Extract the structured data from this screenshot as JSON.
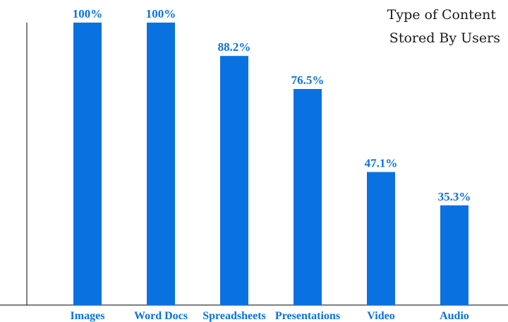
{
  "chart_data": {
    "type": "bar",
    "title_lines": [
      "Type of Content",
      "Stored By Users"
    ],
    "categories": [
      "Images",
      "Word Docs",
      "Spreadsheets",
      "Presentations",
      "Video",
      "Audio"
    ],
    "values": [
      100,
      100,
      88.2,
      76.5,
      47.1,
      35.3
    ],
    "value_labels": [
      "100%",
      "100%",
      "88.2%",
      "76.5%",
      "47.1%",
      "35.3%"
    ],
    "xlabel": "",
    "ylabel": "",
    "ylim": [
      0,
      100
    ],
    "grid": false,
    "colors": {
      "bar": "#0a72e0",
      "label": "#0a72e0",
      "axis": "#000000"
    }
  }
}
